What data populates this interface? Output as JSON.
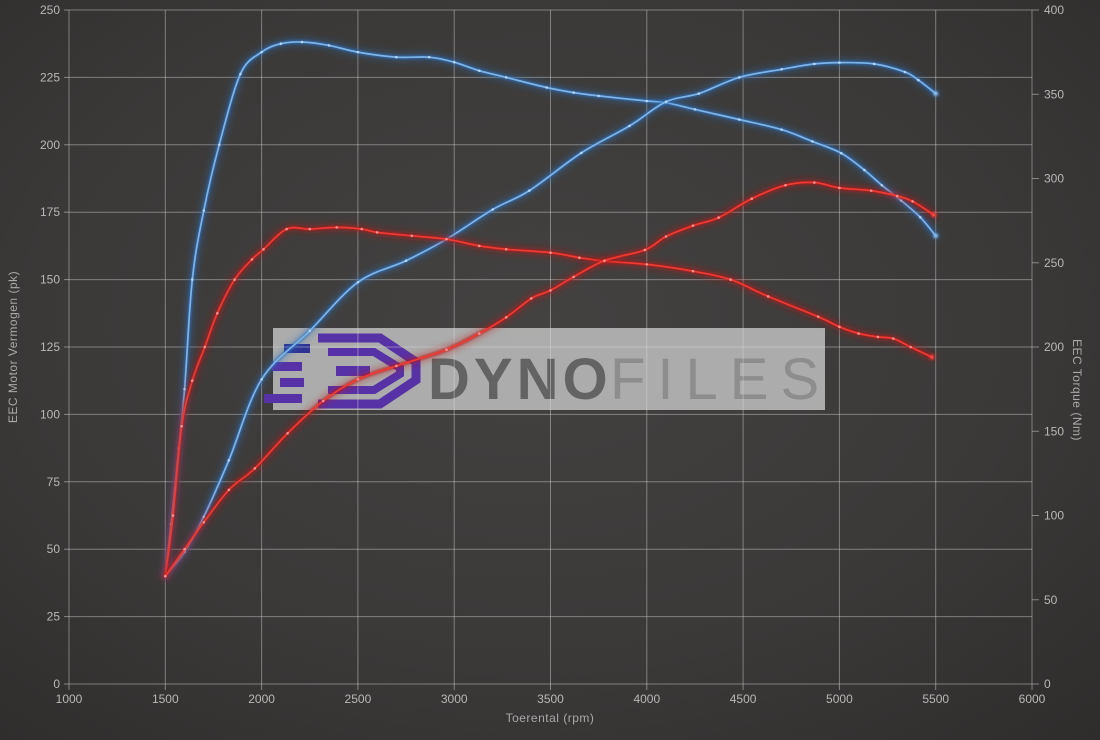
{
  "chart_data": {
    "type": "line",
    "xlabel": "Toerental (rpm)",
    "ylabel_left": "EEC Motor Vermogen (pk)",
    "ylabel_right": "EEC Torque (Nm)",
    "xlim": [
      1000,
      6000
    ],
    "ylim_left": [
      0,
      250
    ],
    "ylim_right": [
      0,
      400
    ],
    "x_ticks": [
      1000,
      1500,
      2000,
      2500,
      3000,
      3500,
      4000,
      4500,
      5000,
      5500,
      6000
    ],
    "y_left_ticks": [
      0,
      25,
      50,
      75,
      100,
      125,
      150,
      175,
      200,
      225,
      250
    ],
    "y_right_ticks": [
      0,
      50,
      100,
      150,
      200,
      250,
      300,
      350,
      400
    ],
    "grid": true,
    "legend_position": "none",
    "gridline_color": "#d8d8d8",
    "tick_color": "#b8b8b8",
    "series": [
      {
        "name": "blue-torque",
        "axis": "right",
        "unit": "Nm",
        "glow": "#2d6fc0",
        "core": "#7fb5e6",
        "dot": "#c2ddf4",
        "points": [
          [
            1500,
            65
          ],
          [
            1530,
            95
          ],
          [
            1570,
            140
          ],
          [
            1600,
            175
          ],
          [
            1640,
            240
          ],
          [
            1700,
            281
          ],
          [
            1780,
            320
          ],
          [
            1890,
            362
          ],
          [
            2000,
            375
          ],
          [
            2100,
            380
          ],
          [
            2210,
            381
          ],
          [
            2350,
            379
          ],
          [
            2500,
            375
          ],
          [
            2700,
            372
          ],
          [
            2870,
            372
          ],
          [
            3000,
            369
          ],
          [
            3130,
            364
          ],
          [
            3270,
            360
          ],
          [
            3480,
            354
          ],
          [
            3620,
            351
          ],
          [
            3750,
            349
          ],
          [
            4000,
            346
          ],
          [
            4100,
            345
          ],
          [
            4250,
            341
          ],
          [
            4480,
            335
          ],
          [
            4700,
            329
          ],
          [
            4860,
            322
          ],
          [
            5010,
            315
          ],
          [
            5130,
            305
          ],
          [
            5220,
            296
          ],
          [
            5320,
            287
          ],
          [
            5420,
            277
          ],
          [
            5500,
            266
          ]
        ]
      },
      {
        "name": "blue-power",
        "axis": "left",
        "unit": "pk",
        "glow": "#2d6fc0",
        "core": "#7fb5e6",
        "dot": "#c2ddf4",
        "points": [
          [
            1500,
            40
          ],
          [
            1600,
            49
          ],
          [
            1700,
            62
          ],
          [
            1830,
            83
          ],
          [
            2000,
            113
          ],
          [
            2250,
            131
          ],
          [
            2500,
            149
          ],
          [
            2750,
            157
          ],
          [
            2960,
            165
          ],
          [
            3200,
            176
          ],
          [
            3390,
            183
          ],
          [
            3660,
            197
          ],
          [
            3910,
            207
          ],
          [
            4100,
            216
          ],
          [
            4270,
            219
          ],
          [
            4480,
            225
          ],
          [
            4700,
            228
          ],
          [
            4870,
            230
          ],
          [
            5000,
            230.5
          ],
          [
            5180,
            230
          ],
          [
            5340,
            227
          ],
          [
            5410,
            224
          ],
          [
            5500,
            219
          ]
        ]
      },
      {
        "name": "red-torque",
        "axis": "right",
        "unit": "Nm",
        "glow": "#b81717",
        "core": "#ef3b33",
        "dot": "#ffa0a0",
        "points": [
          [
            1500,
            64
          ],
          [
            1540,
            100
          ],
          [
            1585,
            153
          ],
          [
            1640,
            180
          ],
          [
            1705,
            200
          ],
          [
            1770,
            220
          ],
          [
            1860,
            240
          ],
          [
            1950,
            252
          ],
          [
            2010,
            258
          ],
          [
            2130,
            270
          ],
          [
            2250,
            270
          ],
          [
            2390,
            271
          ],
          [
            2520,
            270
          ],
          [
            2600,
            268
          ],
          [
            2780,
            266
          ],
          [
            2960,
            264
          ],
          [
            3130,
            260
          ],
          [
            3270,
            258
          ],
          [
            3500,
            256
          ],
          [
            3650,
            253
          ],
          [
            3780,
            251
          ],
          [
            4000,
            249
          ],
          [
            4240,
            245
          ],
          [
            4435,
            240
          ],
          [
            4630,
            230
          ],
          [
            4890,
            218
          ],
          [
            5000,
            212
          ],
          [
            5100,
            208
          ],
          [
            5200,
            206
          ],
          [
            5280,
            205
          ],
          [
            5370,
            200
          ],
          [
            5480,
            194
          ]
        ]
      },
      {
        "name": "red-power",
        "axis": "left",
        "unit": "pk",
        "glow": "#b81717",
        "core": "#ef3b33",
        "dot": "#ffa0a0",
        "points": [
          [
            1500,
            40
          ],
          [
            1600,
            50
          ],
          [
            1700,
            60
          ],
          [
            1830,
            72
          ],
          [
            1965,
            80
          ],
          [
            2135,
            93
          ],
          [
            2320,
            105
          ],
          [
            2500,
            113
          ],
          [
            2700,
            118
          ],
          [
            2960,
            124
          ],
          [
            3130,
            130
          ],
          [
            3270,
            136
          ],
          [
            3400,
            143
          ],
          [
            3500,
            146
          ],
          [
            3620,
            151
          ],
          [
            3780,
            157
          ],
          [
            3990,
            161
          ],
          [
            4100,
            166
          ],
          [
            4240,
            170
          ],
          [
            4373,
            173
          ],
          [
            4545,
            180
          ],
          [
            4720,
            185
          ],
          [
            4870,
            186
          ],
          [
            5000,
            184
          ],
          [
            5165,
            183
          ],
          [
            5300,
            181
          ],
          [
            5380,
            179
          ],
          [
            5490,
            174
          ]
        ]
      }
    ]
  },
  "watermark": {
    "text_dyno": "DYNO",
    "text_files": "FILES",
    "band_color": "#c4c4c4",
    "logo_purple": "#5732a6",
    "logo_navy": "#2f3192"
  },
  "colors": {
    "background_center": "#444241",
    "background_edge": "#2b2a29",
    "blue_curve": "#7fb5e6",
    "red_curve": "#ef3b33"
  }
}
